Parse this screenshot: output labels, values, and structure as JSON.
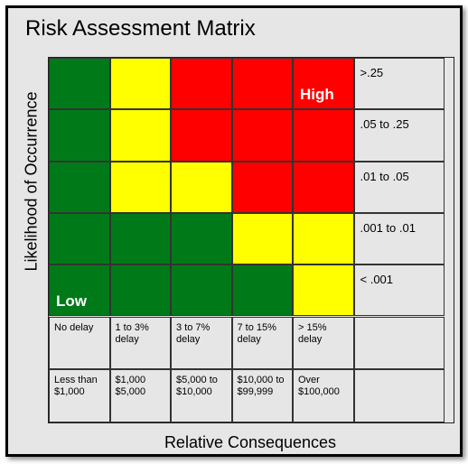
{
  "title": "Risk Assessment Matrix",
  "y_axis_label": "Likelihood of Occurrence",
  "x_axis_label": "Relative Consequences",
  "high_label": "High",
  "low_label": "Low",
  "colors": {
    "green": "#007a19",
    "yellow": "#ffff00",
    "red": "#ff0000",
    "panel": "#e6e6e6"
  },
  "likelihood_labels": [
    ">.25",
    ".05 to .25",
    ".01 to .05",
    ".001 to .01",
    "< .001"
  ],
  "grid": [
    [
      "green",
      "yellow",
      "red",
      "red",
      "red"
    ],
    [
      "green",
      "yellow",
      "red",
      "red",
      "red"
    ],
    [
      "green",
      "yellow",
      "yellow",
      "red",
      "red"
    ],
    [
      "green",
      "green",
      "green",
      "yellow",
      "yellow"
    ],
    [
      "green",
      "green",
      "green",
      "green",
      "yellow"
    ]
  ],
  "delay_row": [
    "No delay",
    "1 to 3% delay",
    "3 to 7% delay",
    "7 to 15% delay",
    "> 15% delay"
  ],
  "cost_row": [
    "Less than $1,000",
    "$1,000 $5,000",
    "$5,000 to $10,000",
    "$10,000 to $99,999",
    "Over $100,000"
  ]
}
